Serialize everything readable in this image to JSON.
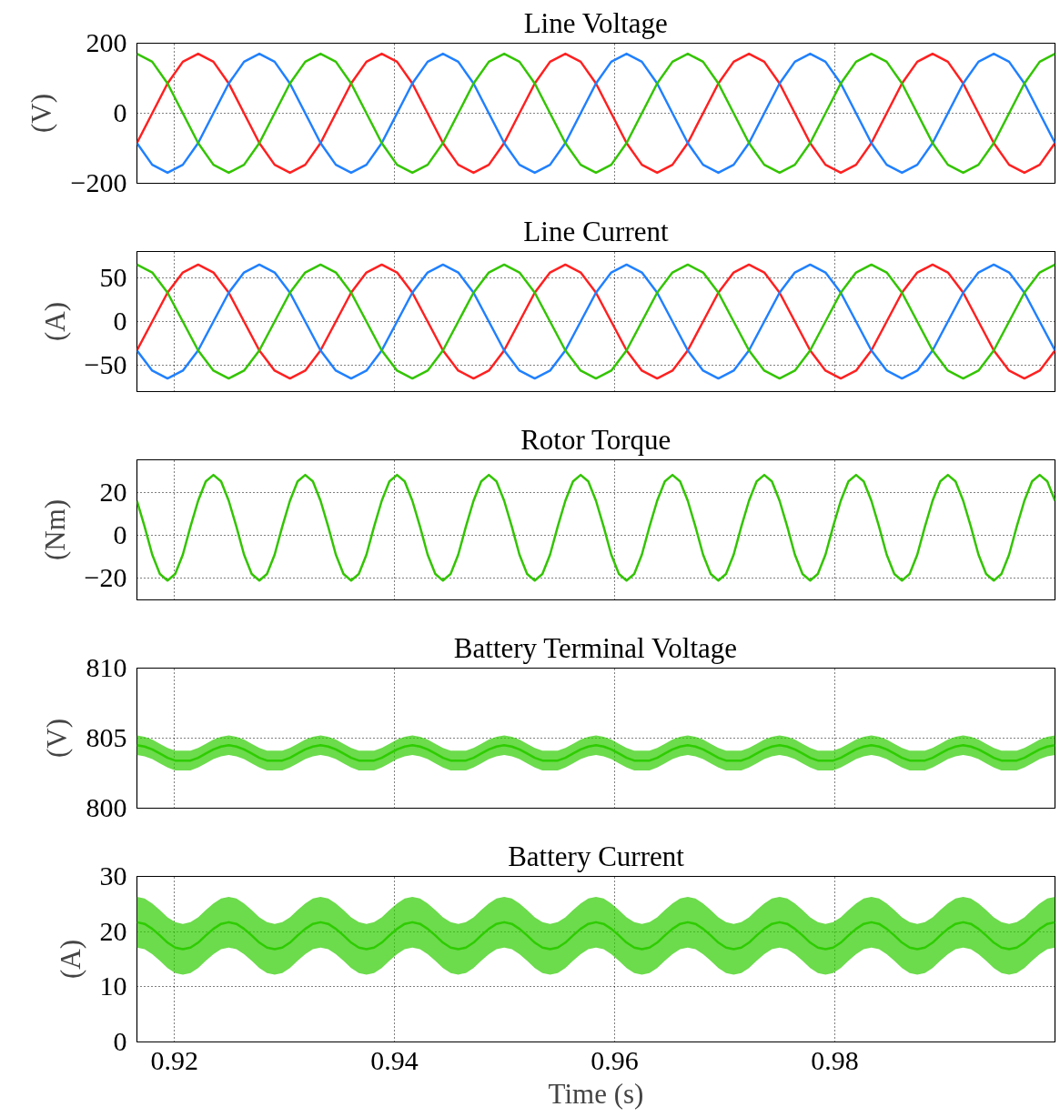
{
  "chart_data": [
    {
      "type": "line",
      "title": "Line Voltage",
      "ylabel": "(V)",
      "xlim": [
        0.9166,
        1.0
      ],
      "ylim": [
        -200,
        200
      ],
      "yticks": [
        -200,
        0,
        200
      ],
      "xticks": [
        0.92,
        0.94,
        0.96,
        0.98
      ],
      "grid": true,
      "tick_labels": "y",
      "x": [
        0.9166,
        0.91799,
        0.91938,
        0.92077,
        0.92216,
        0.92355,
        0.92494,
        0.92633,
        0.92772,
        0.92911,
        0.9305,
        0.93189,
        0.93328,
        0.93467,
        0.93606,
        0.93745,
        0.93884,
        0.94023,
        0.94162,
        0.94301,
        0.9444,
        0.94579,
        0.94718,
        0.94857,
        0.94996,
        0.95135,
        0.95274,
        0.95413,
        0.95552,
        0.95691,
        0.9583,
        0.95969,
        0.96108,
        0.96247,
        0.96386,
        0.96525,
        0.96664,
        0.96803,
        0.96942,
        0.97081,
        0.9722,
        0.97359,
        0.97498,
        0.97637,
        0.97776,
        0.97915,
        0.98054,
        0.98193,
        0.98332,
        0.98471,
        0.9861,
        0.98749,
        0.98888,
        0.99027,
        0.99166,
        0.99305,
        0.99444,
        0.99583,
        0.99722,
        0.99861,
        1.0
      ],
      "series": [
        {
          "color": "#ff2020",
          "values": [
            -85,
            0,
            85,
            147,
            170,
            147,
            85,
            0,
            -85,
            -147,
            -170,
            -147,
            -85,
            0,
            85,
            147,
            170,
            147,
            85,
            0,
            -85,
            -147,
            -170,
            -147,
            -85,
            0,
            85,
            147,
            170,
            147,
            85,
            0,
            -85,
            -147,
            -170,
            -147,
            -85,
            0,
            85,
            147,
            170,
            147,
            85,
            0,
            -85,
            -147,
            -170,
            -147,
            -85,
            0,
            85,
            147,
            170,
            147,
            85,
            0,
            -85,
            -147,
            -170,
            -147,
            -85
          ]
        },
        {
          "color": "#2080ff",
          "values": [
            -85,
            -147,
            -170,
            -147,
            -85,
            0,
            85,
            147,
            170,
            147,
            85,
            0,
            -85,
            -147,
            -170,
            -147,
            -85,
            0,
            85,
            147,
            170,
            147,
            85,
            0,
            -85,
            -147,
            -170,
            -147,
            -85,
            0,
            85,
            147,
            170,
            147,
            85,
            0,
            -85,
            -147,
            -170,
            -147,
            -85,
            0,
            85,
            147,
            170,
            147,
            85,
            0,
            -85,
            -147,
            -170,
            -147,
            -85,
            0,
            85,
            147,
            170,
            147,
            85,
            0,
            -85
          ]
        },
        {
          "color": "#33c400",
          "values": [
            170,
            147,
            85,
            0,
            -85,
            -147,
            -170,
            -147,
            -85,
            0,
            85,
            147,
            170,
            147,
            85,
            0,
            -85,
            -147,
            -170,
            -147,
            -85,
            0,
            85,
            147,
            170,
            147,
            85,
            0,
            -85,
            -147,
            -170,
            -147,
            -85,
            0,
            85,
            147,
            170,
            147,
            85,
            0,
            -85,
            -147,
            -170,
            -147,
            -85,
            0,
            85,
            147,
            170,
            147,
            85,
            0,
            -85,
            -147,
            -170,
            -147,
            -85,
            0,
            85,
            147,
            170
          ]
        }
      ]
    },
    {
      "type": "line",
      "title": "Line Current",
      "ylabel": "(A)",
      "xlim": [
        0.9166,
        1.0
      ],
      "ylim": [
        -80,
        80
      ],
      "yticks": [
        -50,
        0,
        50
      ],
      "xticks": [
        0.92,
        0.94,
        0.96,
        0.98
      ],
      "grid": true,
      "tick_labels": "y",
      "x": [
        0.9166,
        0.91799,
        0.91938,
        0.92077,
        0.92216,
        0.92355,
        0.92494,
        0.92633,
        0.92772,
        0.92911,
        0.9305,
        0.93189,
        0.93328,
        0.93467,
        0.93606,
        0.93745,
        0.93884,
        0.94023,
        0.94162,
        0.94301,
        0.9444,
        0.94579,
        0.94718,
        0.94857,
        0.94996,
        0.95135,
        0.95274,
        0.95413,
        0.95552,
        0.95691,
        0.9583,
        0.95969,
        0.96108,
        0.96247,
        0.96386,
        0.96525,
        0.96664,
        0.96803,
        0.96942,
        0.97081,
        0.9722,
        0.97359,
        0.97498,
        0.97637,
        0.97776,
        0.97915,
        0.98054,
        0.98193,
        0.98332,
        0.98471,
        0.9861,
        0.98749,
        0.98888,
        0.99027,
        0.99166,
        0.99305,
        0.99444,
        0.99583,
        0.99722,
        0.99861,
        1.0
      ],
      "series": [
        {
          "color": "#ff2020",
          "values": [
            -33,
            0,
            33,
            56,
            65,
            56,
            33,
            0,
            -33,
            -56,
            -65,
            -56,
            -33,
            0,
            33,
            56,
            65,
            56,
            33,
            0,
            -33,
            -56,
            -65,
            -56,
            -33,
            0,
            33,
            56,
            65,
            56,
            33,
            0,
            -33,
            -56,
            -65,
            -56,
            -33,
            0,
            33,
            56,
            65,
            56,
            33,
            0,
            -33,
            -56,
            -65,
            -56,
            -33,
            0,
            33,
            56,
            65,
            56,
            33,
            0,
            -33,
            -56,
            -65,
            -56,
            -33
          ]
        },
        {
          "color": "#2080ff",
          "values": [
            -33,
            -56,
            -65,
            -56,
            -33,
            0,
            33,
            56,
            65,
            56,
            33,
            0,
            -33,
            -56,
            -65,
            -56,
            -33,
            0,
            33,
            56,
            65,
            56,
            33,
            0,
            -33,
            -56,
            -65,
            -56,
            -33,
            0,
            33,
            56,
            65,
            56,
            33,
            0,
            -33,
            -56,
            -65,
            -56,
            -33,
            0,
            33,
            56,
            65,
            56,
            33,
            0,
            -33,
            -56,
            -65,
            -56,
            -33,
            0,
            33,
            56,
            65,
            56,
            33,
            0,
            -33
          ]
        },
        {
          "color": "#33c400",
          "values": [
            65,
            56,
            33,
            0,
            -33,
            -56,
            -65,
            -56,
            -33,
            0,
            33,
            56,
            65,
            56,
            33,
            0,
            -33,
            -56,
            -65,
            -56,
            -33,
            0,
            33,
            56,
            65,
            56,
            33,
            0,
            -33,
            -56,
            -65,
            -56,
            -33,
            0,
            33,
            56,
            65,
            56,
            33,
            0,
            -33,
            -56,
            -65,
            -56,
            -33,
            0,
            33,
            56,
            65,
            56,
            33,
            0,
            -33,
            -56,
            -65,
            -56,
            -33,
            0,
            33,
            56,
            65
          ]
        }
      ]
    },
    {
      "type": "line",
      "title": "Rotor Torque",
      "ylabel": "(Nm)",
      "xlim": [
        0.9166,
        1.0
      ],
      "ylim": [
        -30,
        35
      ],
      "yticks": [
        -20,
        0,
        20
      ],
      "xticks": [
        0.92,
        0.94,
        0.96,
        0.98
      ],
      "grid": true,
      "tick_labels": "y",
      "x": [
        0.9166,
        0.917295,
        0.91799,
        0.918685,
        0.91938,
        0.920075,
        0.92077,
        0.921465,
        0.92216,
        0.922855,
        0.92355,
        0.924245,
        0.92494,
        0.925635,
        0.92633,
        0.927025,
        0.92772,
        0.928415,
        0.92911,
        0.929805,
        0.9305,
        0.931195,
        0.93189,
        0.932585,
        0.93328,
        0.933975,
        0.93467,
        0.935365,
        0.93606,
        0.936755,
        0.93745,
        0.938145,
        0.93884,
        0.939535,
        0.94023,
        0.940925,
        0.94162,
        0.942315,
        0.94301,
        0.943705,
        0.9444,
        0.945095,
        0.94579,
        0.946485,
        0.94718,
        0.947875,
        0.94857,
        0.949265,
        0.94996,
        0.950655,
        0.95135,
        0.952045,
        0.95274,
        0.953435,
        0.95413,
        0.954825,
        0.95552,
        0.956215,
        0.95691,
        0.957605,
        0.9583,
        0.958995,
        0.95969,
        0.960385,
        0.96108,
        0.961775,
        0.96247,
        0.963165,
        0.96386,
        0.964555,
        0.96525,
        0.965945,
        0.96664,
        0.967335,
        0.96803,
        0.968725,
        0.96942,
        0.970115,
        0.97081,
        0.971505,
        0.9722,
        0.972895,
        0.97359,
        0.974285,
        0.97498,
        0.975675,
        0.97637,
        0.977065,
        0.97776,
        0.978455,
        0.97915,
        0.979845,
        0.98054,
        0.981235,
        0.98193,
        0.982625,
        0.98332,
        0.984015,
        0.98471,
        0.985405,
        0.9861,
        0.986795,
        0.98749,
        0.988185,
        0.98888,
        0.989575,
        0.99027,
        0.990965,
        0.99166,
        0.992355,
        0.99305,
        0.993745,
        0.99444,
        0.995135,
        0.99583,
        0.996525,
        0.99722,
        0.997915,
        0.99861,
        0.999305,
        1.0
      ],
      "series": [
        {
          "color": "#33c400",
          "values": [
            16,
            4,
            -9,
            -18,
            -21,
            -18,
            -9,
            4,
            16,
            25,
            28,
            25,
            16,
            4,
            -9,
            -18,
            -21,
            -18,
            -9,
            4,
            16,
            25,
            28,
            25,
            16,
            4,
            -9,
            -18,
            -21,
            -18,
            -9,
            4,
            16,
            25,
            28,
            25,
            16,
            4,
            -9,
            -18,
            -21,
            -18,
            -9,
            4,
            16,
            25,
            28,
            25,
            16,
            4,
            -9,
            -18,
            -21,
            -18,
            -9,
            4,
            16,
            25,
            28,
            25,
            16,
            4,
            -9,
            -18,
            -21,
            -18,
            -9,
            4,
            16,
            25,
            28,
            25,
            16,
            4,
            -9,
            -18,
            -21,
            -18,
            -9,
            4,
            16,
            25,
            28,
            25,
            16,
            4,
            -9,
            -18,
            -21,
            -18,
            -9,
            4,
            16,
            25,
            28,
            25,
            16,
            4,
            -9,
            -18,
            -21,
            -18,
            -9,
            4,
            16,
            25,
            28,
            25,
            16,
            4,
            -9,
            -18,
            -21,
            -18,
            -9,
            4,
            16,
            25,
            28,
            25,
            16
          ]
        }
      ]
    },
    {
      "type": "line",
      "title": "Battery Terminal Voltage",
      "ylabel": "(V)",
      "xlim": [
        0.9166,
        1.0
      ],
      "ylim": [
        800,
        810
      ],
      "yticks": [
        800,
        805,
        810
      ],
      "xticks": [
        0.92,
        0.94,
        0.96,
        0.98
      ],
      "grid": true,
      "tick_labels": "y",
      "x": [
        0.9166,
        0.917295,
        0.91799,
        0.918685,
        0.91938,
        0.920075,
        0.92077,
        0.921465,
        0.92216,
        0.922855,
        0.92355,
        0.924245,
        0.92494,
        0.925635,
        0.92633,
        0.927025,
        0.92772,
        0.928415,
        0.92911,
        0.929805,
        0.9305,
        0.931195,
        0.93189,
        0.932585,
        0.93328,
        0.933975,
        0.93467,
        0.935365,
        0.93606,
        0.936755,
        0.93745,
        0.938145,
        0.93884,
        0.939535,
        0.94023,
        0.940925,
        0.94162,
        0.942315,
        0.94301,
        0.943705,
        0.9444,
        0.945095,
        0.94579,
        0.946485,
        0.94718,
        0.947875,
        0.94857,
        0.949265,
        0.94996,
        0.950655,
        0.95135,
        0.952045,
        0.95274,
        0.953435,
        0.95413,
        0.954825,
        0.95552,
        0.956215,
        0.95691,
        0.957605,
        0.9583,
        0.958995,
        0.95969,
        0.960385,
        0.96108,
        0.961775,
        0.96247,
        0.963165,
        0.96386,
        0.964555,
        0.96525,
        0.965945,
        0.96664,
        0.967335,
        0.96803,
        0.968725,
        0.96942,
        0.970115,
        0.97081,
        0.971505,
        0.9722,
        0.972895,
        0.97359,
        0.974285,
        0.97498,
        0.975675,
        0.97637,
        0.977065,
        0.97776,
        0.978455,
        0.97915,
        0.979845,
        0.98054,
        0.981235,
        0.98193,
        0.982625,
        0.98332,
        0.984015,
        0.98471,
        0.985405,
        0.9861,
        0.986795,
        0.98749,
        0.988185,
        0.98888,
        0.989575,
        0.99027,
        0.990965,
        0.99166,
        0.992355,
        0.99305,
        0.993745,
        0.99444,
        0.995135,
        0.99583,
        0.996525,
        0.99722,
        0.997915,
        0.99861,
        0.999305,
        1.0
      ],
      "series": [
        {
          "color": "#2ecc00",
          "values": [
            804.5,
            804.4,
            804.2,
            803.9,
            803.6,
            803.4,
            803.4,
            803.4,
            803.6,
            803.9,
            804.2,
            804.4,
            804.5,
            804.4,
            804.2,
            803.9,
            803.6,
            803.4,
            803.4,
            803.4,
            803.6,
            803.9,
            804.2,
            804.4,
            804.5,
            804.4,
            804.2,
            803.9,
            803.6,
            803.4,
            803.4,
            803.4,
            803.6,
            803.9,
            804.2,
            804.4,
            804.5,
            804.4,
            804.2,
            803.9,
            803.6,
            803.4,
            803.4,
            803.4,
            803.6,
            803.9,
            804.2,
            804.4,
            804.5,
            804.4,
            804.2,
            803.9,
            803.6,
            803.4,
            803.4,
            803.4,
            803.6,
            803.9,
            804.2,
            804.4,
            804.5,
            804.4,
            804.2,
            803.9,
            803.6,
            803.4,
            803.4,
            803.4,
            803.6,
            803.9,
            804.2,
            804.4,
            804.5,
            804.4,
            804.2,
            803.9,
            803.6,
            803.4,
            803.4,
            803.4,
            803.6,
            803.9,
            804.2,
            804.4,
            804.5,
            804.4,
            804.2,
            803.9,
            803.6,
            803.4,
            803.4,
            803.4,
            803.6,
            803.9,
            804.2,
            804.4,
            804.5,
            804.4,
            804.2,
            803.9,
            803.6,
            803.4,
            803.4,
            803.4,
            803.6,
            803.9,
            804.2,
            804.4,
            804.5,
            804.4,
            804.2,
            803.9,
            803.6,
            803.4,
            803.4,
            803.4,
            803.6,
            803.9,
            804.2,
            804.4,
            804.5
          ],
          "upper": [
            805.2,
            805.1,
            804.9,
            804.6,
            804.3,
            804.1,
            804.1,
            804.1,
            804.3,
            804.6,
            804.9,
            805.1,
            805.2,
            805.1,
            804.9,
            804.6,
            804.3,
            804.1,
            804.1,
            804.1,
            804.3,
            804.6,
            804.9,
            805.1,
            805.2,
            805.1,
            804.9,
            804.6,
            804.3,
            804.1,
            804.1,
            804.1,
            804.3,
            804.6,
            804.9,
            805.1,
            805.2,
            805.1,
            804.9,
            804.6,
            804.3,
            804.1,
            804.1,
            804.1,
            804.3,
            804.6,
            804.9,
            805.1,
            805.2,
            805.1,
            804.9,
            804.6,
            804.3,
            804.1,
            804.1,
            804.1,
            804.3,
            804.6,
            804.9,
            805.1,
            805.2,
            805.1,
            804.9,
            804.6,
            804.3,
            804.1,
            804.1,
            804.1,
            804.3,
            804.6,
            804.9,
            805.1,
            805.2,
            805.1,
            804.9,
            804.6,
            804.3,
            804.1,
            804.1,
            804.1,
            804.3,
            804.6,
            804.9,
            805.1,
            805.2,
            805.1,
            804.9,
            804.6,
            804.3,
            804.1,
            804.1,
            804.1,
            804.3,
            804.6,
            804.9,
            805.1,
            805.2,
            805.1,
            804.9,
            804.6,
            804.3,
            804.1,
            804.1,
            804.1,
            804.3,
            804.6,
            804.9,
            805.1,
            805.2,
            805.1,
            804.9,
            804.6,
            804.3,
            804.1,
            804.1,
            804.1,
            804.3,
            804.6,
            804.9,
            805.1,
            805.2
          ],
          "lower": [
            803.8,
            803.7,
            803.5,
            803.2,
            802.9,
            802.7,
            802.7,
            802.7,
            802.9,
            803.2,
            803.5,
            803.7,
            803.8,
            803.7,
            803.5,
            803.2,
            802.9,
            802.7,
            802.7,
            802.7,
            802.9,
            803.2,
            803.5,
            803.7,
            803.8,
            803.7,
            803.5,
            803.2,
            802.9,
            802.7,
            802.7,
            802.7,
            802.9,
            803.2,
            803.5,
            803.7,
            803.8,
            803.7,
            803.5,
            803.2,
            802.9,
            802.7,
            802.7,
            802.7,
            802.9,
            803.2,
            803.5,
            803.7,
            803.8,
            803.7,
            803.5,
            803.2,
            802.9,
            802.7,
            802.7,
            802.7,
            802.9,
            803.2,
            803.5,
            803.7,
            803.8,
            803.7,
            803.5,
            803.2,
            802.9,
            802.7,
            802.7,
            802.7,
            802.9,
            803.2,
            803.5,
            803.7,
            803.8,
            803.7,
            803.5,
            803.2,
            802.9,
            802.7,
            802.7,
            802.7,
            802.9,
            803.2,
            803.5,
            803.7,
            803.8,
            803.7,
            803.5,
            803.2,
            802.9,
            802.7,
            802.7,
            802.7,
            802.9,
            803.2,
            803.5,
            803.7,
            803.8,
            803.7,
            803.5,
            803.2,
            802.9,
            802.7,
            802.7,
            802.7,
            802.9,
            803.2,
            803.5,
            803.7,
            803.8,
            803.7,
            803.5,
            803.2,
            802.9,
            802.7,
            802.7,
            802.7,
            802.9,
            803.2,
            803.5,
            803.7,
            803.8
          ]
        }
      ]
    },
    {
      "type": "line",
      "title": "Battery Current",
      "ylabel": "(A)",
      "xlabel": "Time (s)",
      "xlim": [
        0.9166,
        1.0
      ],
      "ylim": [
        0,
        30
      ],
      "yticks": [
        0,
        10,
        20,
        30
      ],
      "xticks": [
        0.92,
        0.94,
        0.96,
        0.98
      ],
      "grid": true,
      "x": [
        0.9166,
        0.917295,
        0.91799,
        0.918685,
        0.91938,
        0.920075,
        0.92077,
        0.921465,
        0.92216,
        0.922855,
        0.92355,
        0.924245,
        0.92494,
        0.925635,
        0.92633,
        0.927025,
        0.92772,
        0.928415,
        0.92911,
        0.929805,
        0.9305,
        0.931195,
        0.93189,
        0.932585,
        0.93328,
        0.933975,
        0.93467,
        0.935365,
        0.93606,
        0.936755,
        0.93745,
        0.938145,
        0.93884,
        0.939535,
        0.94023,
        0.940925,
        0.94162,
        0.942315,
        0.94301,
        0.943705,
        0.9444,
        0.945095,
        0.94579,
        0.946485,
        0.94718,
        0.947875,
        0.94857,
        0.949265,
        0.94996,
        0.950655,
        0.95135,
        0.952045,
        0.95274,
        0.953435,
        0.95413,
        0.954825,
        0.95552,
        0.956215,
        0.95691,
        0.957605,
        0.9583,
        0.958995,
        0.95969,
        0.960385,
        0.96108,
        0.961775,
        0.96247,
        0.963165,
        0.96386,
        0.964555,
        0.96525,
        0.965945,
        0.96664,
        0.967335,
        0.96803,
        0.968725,
        0.96942,
        0.970115,
        0.97081,
        0.971505,
        0.9722,
        0.972895,
        0.97359,
        0.974285,
        0.97498,
        0.975675,
        0.97637,
        0.977065,
        0.97776,
        0.978455,
        0.97915,
        0.979845,
        0.98054,
        0.981235,
        0.98193,
        0.982625,
        0.98332,
        0.984015,
        0.98471,
        0.985405,
        0.9861,
        0.986795,
        0.98749,
        0.988185,
        0.98888,
        0.989575,
        0.99027,
        0.990965,
        0.99166,
        0.992355,
        0.99305,
        0.993745,
        0.99444,
        0.995135,
        0.99583,
        0.996525,
        0.99722,
        0.997915,
        0.99861,
        0.999305,
        1.0
      ],
      "series": [
        {
          "color": "#2ecc00",
          "values": [
            21.7,
            21.4,
            20.5,
            19.3,
            18.0,
            17.1,
            16.8,
            17.1,
            18.0,
            19.3,
            20.5,
            21.4,
            21.7,
            21.4,
            20.5,
            19.3,
            18.0,
            17.1,
            16.8,
            17.1,
            18.0,
            19.3,
            20.5,
            21.4,
            21.7,
            21.4,
            20.5,
            19.3,
            18.0,
            17.1,
            16.8,
            17.1,
            18.0,
            19.3,
            20.5,
            21.4,
            21.7,
            21.4,
            20.5,
            19.3,
            18.0,
            17.1,
            16.8,
            17.1,
            18.0,
            19.3,
            20.5,
            21.4,
            21.7,
            21.4,
            20.5,
            19.3,
            18.0,
            17.1,
            16.8,
            17.1,
            18.0,
            19.3,
            20.5,
            21.4,
            21.7,
            21.4,
            20.5,
            19.3,
            18.0,
            17.1,
            16.8,
            17.1,
            18.0,
            19.3,
            20.5,
            21.4,
            21.7,
            21.4,
            20.5,
            19.3,
            18.0,
            17.1,
            16.8,
            17.1,
            18.0,
            19.3,
            20.5,
            21.4,
            21.7,
            21.4,
            20.5,
            19.3,
            18.0,
            17.1,
            16.8,
            17.1,
            18.0,
            19.3,
            20.5,
            21.4,
            21.7,
            21.4,
            20.5,
            19.3,
            18.0,
            17.1,
            16.8,
            17.1,
            18.0,
            19.3,
            20.5,
            21.4,
            21.7,
            21.4,
            20.5,
            19.3,
            18.0,
            17.1,
            16.8,
            17.1,
            18.0,
            19.3,
            20.5,
            21.4,
            21.7
          ],
          "upper": [
            26.3,
            26.0,
            25.1,
            23.9,
            22.6,
            21.7,
            21.4,
            21.7,
            22.6,
            23.9,
            25.1,
            26.0,
            26.3,
            26.0,
            25.1,
            23.9,
            22.6,
            21.7,
            21.4,
            21.7,
            22.6,
            23.9,
            25.1,
            26.0,
            26.3,
            26.0,
            25.1,
            23.9,
            22.6,
            21.7,
            21.4,
            21.7,
            22.6,
            23.9,
            25.1,
            26.0,
            26.3,
            26.0,
            25.1,
            23.9,
            22.6,
            21.7,
            21.4,
            21.7,
            22.6,
            23.9,
            25.1,
            26.0,
            26.3,
            26.0,
            25.1,
            23.9,
            22.6,
            21.7,
            21.4,
            21.7,
            22.6,
            23.9,
            25.1,
            26.0,
            26.3,
            26.0,
            25.1,
            23.9,
            22.6,
            21.7,
            21.4,
            21.7,
            22.6,
            23.9,
            25.1,
            26.0,
            26.3,
            26.0,
            25.1,
            23.9,
            22.6,
            21.7,
            21.4,
            21.7,
            22.6,
            23.9,
            25.1,
            26.0,
            26.3,
            26.0,
            25.1,
            23.9,
            22.6,
            21.7,
            21.4,
            21.7,
            22.6,
            23.9,
            25.1,
            26.0,
            26.3,
            26.0,
            25.1,
            23.9,
            22.6,
            21.7,
            21.4,
            21.7,
            22.6,
            23.9,
            25.1,
            26.0,
            26.3,
            26.0,
            25.1,
            23.9,
            22.6,
            21.7,
            21.4,
            21.7,
            22.6,
            23.9,
            25.1,
            26.0,
            26.3
          ],
          "lower": [
            17.1,
            16.8,
            15.9,
            14.7,
            13.4,
            12.5,
            12.2,
            12.5,
            13.4,
            14.7,
            15.9,
            16.8,
            17.1,
            16.8,
            15.9,
            14.7,
            13.4,
            12.5,
            12.2,
            12.5,
            13.4,
            14.7,
            15.9,
            16.8,
            17.1,
            16.8,
            15.9,
            14.7,
            13.4,
            12.5,
            12.2,
            12.5,
            13.4,
            14.7,
            15.9,
            16.8,
            17.1,
            16.8,
            15.9,
            14.7,
            13.4,
            12.5,
            12.2,
            12.5,
            13.4,
            14.7,
            15.9,
            16.8,
            17.1,
            16.8,
            15.9,
            14.7,
            13.4,
            12.5,
            12.2,
            12.5,
            13.4,
            14.7,
            15.9,
            16.8,
            17.1,
            16.8,
            15.9,
            14.7,
            13.4,
            12.5,
            12.2,
            12.5,
            13.4,
            14.7,
            15.9,
            16.8,
            17.1,
            16.8,
            15.9,
            14.7,
            13.4,
            12.5,
            12.2,
            12.5,
            13.4,
            14.7,
            15.9,
            16.8,
            17.1,
            16.8,
            15.9,
            14.7,
            13.4,
            12.5,
            12.2,
            12.5,
            13.4,
            14.7,
            15.9,
            16.8,
            17.1,
            16.8,
            15.9,
            14.7,
            13.4,
            12.5,
            12.2,
            12.5,
            13.4,
            14.7,
            15.9,
            16.8,
            17.1,
            16.8,
            15.9,
            14.7,
            13.4,
            12.5,
            12.2,
            12.5,
            13.4,
            14.7,
            15.9,
            16.8,
            17.1
          ]
        }
      ]
    }
  ]
}
